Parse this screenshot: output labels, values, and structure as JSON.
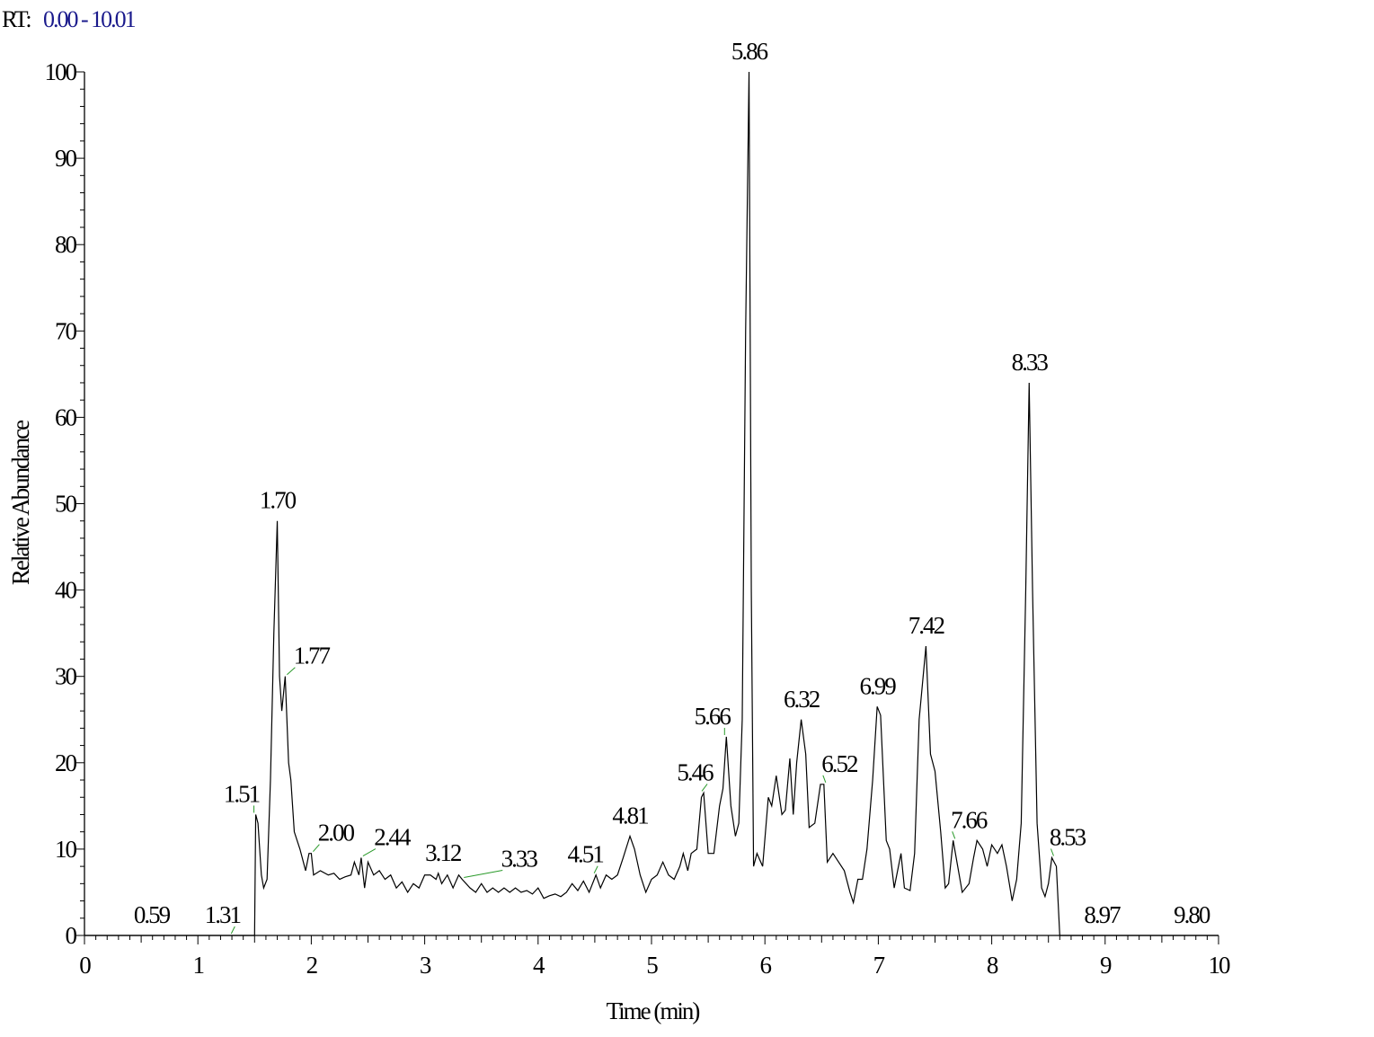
{
  "chart_data": {
    "type": "line",
    "header": {
      "label": "RT:",
      "range": "0.00 - 10.01"
    },
    "xlabel": "Time (min)",
    "ylabel": "Relative Abundance",
    "xlim": [
      0,
      10
    ],
    "ylim": [
      0,
      100
    ],
    "xticks": [
      0,
      1,
      2,
      3,
      4,
      5,
      6,
      7,
      8,
      9,
      10
    ],
    "yticks": [
      0,
      10,
      20,
      30,
      40,
      50,
      60,
      70,
      80,
      90,
      100
    ],
    "grid": false,
    "annotation_color": "#2a9a2a",
    "x": [
      0,
      1.5,
      1.51,
      1.53,
      1.56,
      1.58,
      1.61,
      1.64,
      1.67,
      1.7,
      1.72,
      1.74,
      1.77,
      1.8,
      1.82,
      1.85,
      1.9,
      1.95,
      1.98,
      2,
      2.02,
      2.08,
      2.15,
      2.2,
      2.25,
      2.3,
      2.35,
      2.38,
      2.42,
      2.44,
      2.47,
      2.5,
      2.55,
      2.6,
      2.65,
      2.7,
      2.75,
      2.8,
      2.85,
      2.9,
      2.95,
      3,
      3.05,
      3.1,
      3.12,
      3.15,
      3.2,
      3.25,
      3.3,
      3.33,
      3.4,
      3.45,
      3.5,
      3.55,
      3.6,
      3.65,
      3.7,
      3.75,
      3.8,
      3.85,
      3.9,
      3.95,
      4,
      4.05,
      4.1,
      4.15,
      4.2,
      4.25,
      4.3,
      4.35,
      4.4,
      4.45,
      4.51,
      4.55,
      4.6,
      4.65,
      4.7,
      4.75,
      4.81,
      4.85,
      4.9,
      4.95,
      5,
      5.05,
      5.1,
      5.15,
      5.2,
      5.25,
      5.28,
      5.32,
      5.35,
      5.4,
      5.44,
      5.46,
      5.5,
      5.55,
      5.6,
      5.63,
      5.66,
      5.7,
      5.74,
      5.77,
      5.8,
      5.83,
      5.86,
      5.88,
      5.9,
      5.93,
      5.98,
      6.03,
      6.06,
      6.1,
      6.15,
      6.18,
      6.22,
      6.25,
      6.28,
      6.32,
      6.36,
      6.39,
      6.44,
      6.49,
      6.52,
      6.55,
      6.6,
      6.65,
      6.7,
      6.75,
      6.78,
      6.82,
      6.86,
      6.9,
      6.95,
      6.99,
      7.02,
      7.07,
      7.1,
      7.14,
      7.2,
      7.23,
      7.28,
      7.32,
      7.36,
      7.42,
      7.46,
      7.5,
      7.55,
      7.59,
      7.62,
      7.66,
      7.7,
      7.74,
      7.8,
      7.84,
      7.87,
      7.92,
      7.96,
      8,
      8.05,
      8.09,
      8.13,
      8.18,
      8.22,
      8.26,
      8.3,
      8.33,
      8.36,
      8.4,
      8.44,
      8.47,
      8.5,
      8.53,
      8.57,
      8.6,
      8.97,
      9.8,
      10
    ],
    "series": [
      {
        "color": "#000000",
        "values": [
          0,
          0,
          14,
          13,
          7,
          5.5,
          6.5,
          18,
          35,
          48,
          30,
          26,
          30,
          20,
          18,
          12,
          10,
          7.5,
          9.5,
          9.5,
          7,
          7.5,
          7,
          7.2,
          6.5,
          6.8,
          7,
          8.5,
          7,
          9,
          5.5,
          8.5,
          7,
          7.5,
          6.5,
          7,
          5.5,
          6.2,
          5,
          6,
          5.5,
          7,
          7,
          6.5,
          7.2,
          6,
          7,
          5.5,
          7,
          6.5,
          5.5,
          5,
          6,
          5,
          5.5,
          5,
          5.5,
          5,
          5.5,
          5,
          5.2,
          4.8,
          5.5,
          4.3,
          4.6,
          4.8,
          4.5,
          5,
          6,
          5.2,
          6.3,
          5,
          7,
          5.5,
          7,
          6.5,
          7,
          9,
          11.5,
          10,
          7,
          5,
          6.5,
          7,
          8.5,
          7,
          6.5,
          8,
          9.5,
          7.5,
          9.5,
          10,
          16,
          16.5,
          9.5,
          9.5,
          15,
          17,
          23,
          15,
          11.5,
          13,
          25,
          70,
          100,
          40,
          8,
          9.5,
          8,
          16,
          15,
          18.5,
          14,
          14.5,
          20.5,
          14,
          20,
          25,
          21,
          12.5,
          13,
          17.5,
          17.5,
          8.5,
          9.5,
          8.5,
          7.5,
          5,
          3.8,
          6.5,
          6.5,
          10,
          18,
          26.5,
          25.5,
          11,
          10,
          5.5,
          9.5,
          5.5,
          5.2,
          9.5,
          25,
          33.5,
          21,
          19,
          12,
          5.5,
          6,
          11,
          8,
          5,
          6,
          9,
          11,
          10,
          8,
          10.5,
          9.5,
          10.5,
          8,
          4,
          6.5,
          13,
          40,
          64,
          40,
          13,
          5.5,
          4.5,
          6,
          9,
          8,
          0,
          0,
          0,
          0
        ]
      }
    ],
    "annotations": [
      {
        "label": "0.59",
        "x": 0.59,
        "y": 0
      },
      {
        "label": "1.31",
        "x": 1.31,
        "y": 0
      },
      {
        "label": "1.51",
        "x": 1.51,
        "y": 14
      },
      {
        "label": "1.70",
        "x": 1.7,
        "y": 48
      },
      {
        "label": "1.77",
        "x": 1.77,
        "y": 30
      },
      {
        "label": "2.00",
        "x": 2,
        "y": 9.5
      },
      {
        "label": "2.44",
        "x": 2.44,
        "y": 9
      },
      {
        "label": "3.12",
        "x": 3.12,
        "y": 7.2
      },
      {
        "label": "3.33",
        "x": 3.33,
        "y": 6.5
      },
      {
        "label": "4.51",
        "x": 4.51,
        "y": 7
      },
      {
        "label": "4.81",
        "x": 4.81,
        "y": 11.5
      },
      {
        "label": "5.46",
        "x": 5.46,
        "y": 16.5
      },
      {
        "label": "5.66",
        "x": 5.66,
        "y": 23
      },
      {
        "label": "5.86",
        "x": 5.86,
        "y": 100
      },
      {
        "label": "6.32",
        "x": 6.32,
        "y": 25
      },
      {
        "label": "6.52",
        "x": 6.52,
        "y": 17.5
      },
      {
        "label": "6.99",
        "x": 6.99,
        "y": 26.5
      },
      {
        "label": "7.42",
        "x": 7.42,
        "y": 33.5
      },
      {
        "label": "7.66",
        "x": 7.66,
        "y": 11
      },
      {
        "label": "8.33",
        "x": 8.33,
        "y": 64
      },
      {
        "label": "8.53",
        "x": 8.53,
        "y": 9
      },
      {
        "label": "8.97",
        "x": 8.97,
        "y": 0
      },
      {
        "label": "9.80",
        "x": 9.8,
        "y": 0
      }
    ]
  }
}
